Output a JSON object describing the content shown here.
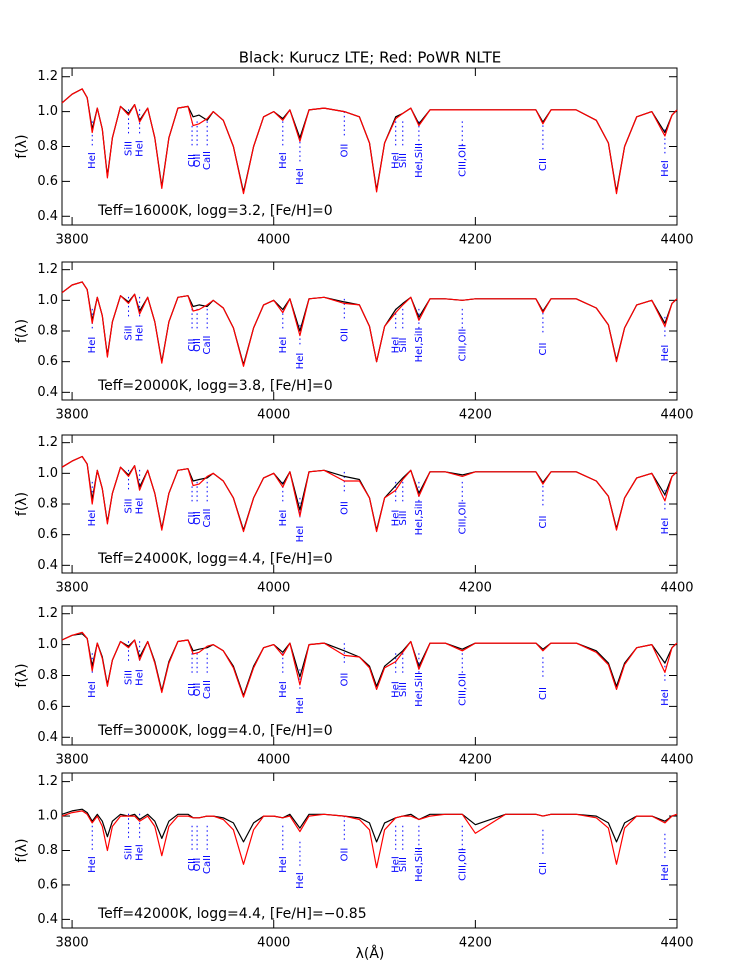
{
  "title": "Black: Kurucz LTE; Red: PoWR NLTE",
  "xlabel": "λ(Å)",
  "line_ids": [
    {
      "label": "HeI",
      "wavelength": 3820
    },
    {
      "label": "SiII",
      "wavelength": 3856
    },
    {
      "label": "HeI",
      "wavelength": 3867
    },
    {
      "label": "CII",
      "wavelength": 3919
    },
    {
      "label": "OII",
      "wavelength": 3924
    },
    {
      "label": "CaII",
      "wavelength": 3934
    },
    {
      "label": "HeI",
      "wavelength": 4009
    },
    {
      "label": "HeI",
      "wavelength": 4026
    },
    {
      "label": "OII",
      "wavelength": 4070
    },
    {
      "label": "HeI",
      "wavelength": 4121
    },
    {
      "label": "SiII",
      "wavelength": 4128
    },
    {
      "label": "HeI,SiII",
      "wavelength": 4144
    },
    {
      "label": "CIII,OII",
      "wavelength": 4187
    },
    {
      "label": "CII",
      "wavelength": 4267
    },
    {
      "label": "HeI",
      "wavelength": 4388
    }
  ],
  "chart_data": [
    {
      "type": "line",
      "ylabel": "f(λ)",
      "annotation": "Teff=16000K, logg=3.2, [Fe/H]=0",
      "x": [
        3790,
        3800,
        3810,
        3815,
        3820,
        3825,
        3830,
        3835,
        3840,
        3848,
        3856,
        3862,
        3867,
        3875,
        3882,
        3889,
        3896,
        3905,
        3915,
        3920,
        3926,
        3934,
        3940,
        3950,
        3960,
        3970,
        3980,
        3990,
        4000,
        4009,
        4016,
        4026,
        4035,
        4050,
        4070,
        4085,
        4095,
        4102,
        4110,
        4121,
        4128,
        4136,
        4144,
        4155,
        4170,
        4187,
        4200,
        4230,
        4260,
        4267,
        4275,
        4300,
        4320,
        4332,
        4340,
        4348,
        4360,
        4375,
        4388,
        4395,
        4400
      ],
      "series": [
        {
          "color": "#000000",
          "values": [
            1.05,
            1.1,
            1.13,
            1.08,
            0.9,
            1.02,
            0.9,
            0.63,
            0.85,
            1.03,
            0.99,
            1.04,
            0.95,
            1.02,
            0.85,
            0.57,
            0.85,
            1.02,
            1.03,
            0.97,
            0.98,
            0.95,
            1.0,
            0.95,
            0.8,
            0.54,
            0.8,
            0.97,
            1.0,
            0.96,
            1.01,
            0.85,
            1.01,
            1.02,
            1.0,
            0.97,
            0.82,
            0.55,
            0.82,
            0.97,
            0.99,
            1.02,
            0.93,
            1.01,
            1.01,
            1.01,
            1.01,
            1.01,
            1.01,
            0.94,
            1.01,
            1.01,
            0.95,
            0.82,
            0.54,
            0.8,
            0.97,
            1.0,
            0.88,
            0.98,
            1.01
          ]
        },
        {
          "color": "#ff0000",
          "values": [
            1.05,
            1.1,
            1.13,
            1.08,
            0.88,
            1.02,
            0.9,
            0.62,
            0.85,
            1.03,
            0.98,
            1.04,
            0.94,
            1.02,
            0.85,
            0.56,
            0.85,
            1.02,
            1.03,
            0.92,
            0.93,
            0.96,
            1.0,
            0.95,
            0.8,
            0.53,
            0.8,
            0.97,
            1.0,
            0.95,
            1.01,
            0.83,
            1.01,
            1.02,
            1.0,
            0.97,
            0.82,
            0.54,
            0.82,
            0.96,
            0.99,
            1.02,
            0.92,
            1.01,
            1.01,
            1.01,
            1.01,
            1.01,
            1.01,
            0.93,
            1.01,
            1.01,
            0.95,
            0.82,
            0.53,
            0.8,
            0.97,
            1.0,
            0.86,
            0.98,
            1.01
          ]
        }
      ],
      "xlim": [
        3790,
        4400
      ],
      "xticks": [
        3800,
        4000,
        4200,
        4400
      ],
      "ylim": [
        0.35,
        1.25
      ],
      "yticks": [
        0.4,
        0.6,
        0.8,
        {
          "value": 1,
          "label": "1.0"
        },
        1.2
      ]
    },
    {
      "type": "line",
      "ylabel": "f(λ)",
      "annotation": "Teff=20000K, logg=3.8, [Fe/H]=0",
      "x": [
        3790,
        3800,
        3810,
        3815,
        3820,
        3825,
        3830,
        3835,
        3840,
        3848,
        3856,
        3862,
        3867,
        3875,
        3882,
        3889,
        3896,
        3905,
        3915,
        3920,
        3926,
        3934,
        3940,
        3950,
        3960,
        3970,
        3980,
        3990,
        4000,
        4009,
        4016,
        4026,
        4035,
        4050,
        4070,
        4085,
        4095,
        4102,
        4110,
        4121,
        4128,
        4136,
        4144,
        4155,
        4170,
        4187,
        4200,
        4230,
        4260,
        4267,
        4275,
        4300,
        4320,
        4332,
        4340,
        4348,
        4360,
        4375,
        4388,
        4395,
        4400
      ],
      "series": [
        {
          "color": "#000000",
          "values": [
            1.05,
            1.1,
            1.12,
            1.07,
            0.87,
            1.02,
            0.9,
            0.64,
            0.86,
            1.03,
            0.99,
            1.04,
            0.93,
            1.02,
            0.86,
            0.6,
            0.86,
            1.02,
            1.03,
            0.96,
            0.97,
            0.96,
            1.0,
            0.95,
            0.82,
            0.58,
            0.82,
            0.97,
            1.0,
            0.94,
            1.01,
            0.8,
            1.01,
            1.02,
            0.99,
            0.97,
            0.83,
            0.6,
            0.83,
            0.94,
            0.98,
            1.02,
            0.89,
            1.01,
            1.01,
            1.0,
            1.01,
            1.01,
            1.01,
            0.93,
            1.01,
            1.01,
            0.95,
            0.84,
            0.61,
            0.82,
            0.97,
            1.0,
            0.85,
            0.98,
            1.01
          ]
        },
        {
          "color": "#ff0000",
          "values": [
            1.05,
            1.1,
            1.12,
            1.07,
            0.85,
            1.02,
            0.9,
            0.63,
            0.86,
            1.03,
            0.98,
            1.04,
            0.91,
            1.02,
            0.86,
            0.59,
            0.86,
            1.02,
            1.03,
            0.93,
            0.94,
            0.97,
            1.0,
            0.95,
            0.82,
            0.57,
            0.82,
            0.97,
            1.0,
            0.92,
            1.01,
            0.77,
            1.01,
            1.02,
            0.98,
            0.97,
            0.83,
            0.6,
            0.83,
            0.92,
            0.97,
            1.02,
            0.87,
            1.01,
            1.01,
            1.0,
            1.01,
            1.01,
            1.01,
            0.92,
            1.01,
            1.01,
            0.95,
            0.84,
            0.6,
            0.82,
            0.97,
            1.0,
            0.83,
            0.98,
            1.01
          ]
        }
      ],
      "xlim": [
        3790,
        4400
      ],
      "xticks": [
        3800,
        4000,
        4200,
        4400
      ],
      "ylim": [
        0.35,
        1.25
      ],
      "yticks": [
        0.4,
        0.6,
        0.8,
        {
          "value": 1,
          "label": "1.0"
        },
        1.2
      ]
    },
    {
      "type": "line",
      "ylabel": "f(λ)",
      "annotation": "Teff=24000K, logg=4.4, [Fe/H]=0",
      "x": [
        3790,
        3800,
        3810,
        3815,
        3820,
        3825,
        3830,
        3835,
        3840,
        3848,
        3856,
        3862,
        3867,
        3875,
        3882,
        3889,
        3896,
        3905,
        3915,
        3920,
        3926,
        3934,
        3940,
        3950,
        3960,
        3970,
        3980,
        3990,
        4000,
        4009,
        4016,
        4026,
        4035,
        4050,
        4070,
        4085,
        4095,
        4102,
        4110,
        4121,
        4128,
        4136,
        4144,
        4155,
        4170,
        4187,
        4200,
        4230,
        4260,
        4267,
        4275,
        4300,
        4320,
        4332,
        4340,
        4348,
        4360,
        4375,
        4388,
        4395,
        4400
      ],
      "series": [
        {
          "color": "#000000",
          "values": [
            1.04,
            1.08,
            1.11,
            1.06,
            0.83,
            1.02,
            0.9,
            0.68,
            0.87,
            1.04,
            0.99,
            1.05,
            0.91,
            1.02,
            0.87,
            0.64,
            0.87,
            1.02,
            1.03,
            0.95,
            0.96,
            0.97,
            1.0,
            0.95,
            0.84,
            0.63,
            0.84,
            0.97,
            1.0,
            0.93,
            1.01,
            0.76,
            1.01,
            1.02,
            0.98,
            0.96,
            0.84,
            0.63,
            0.84,
            0.92,
            0.97,
            1.02,
            0.87,
            1.01,
            1.01,
            0.99,
            1.01,
            1.01,
            1.01,
            0.94,
            1.01,
            1.01,
            0.95,
            0.85,
            0.64,
            0.84,
            0.97,
            1.0,
            0.86,
            0.98,
            1.01
          ]
        },
        {
          "color": "#ff0000",
          "values": [
            1.04,
            1.08,
            1.11,
            1.06,
            0.8,
            1.02,
            0.9,
            0.67,
            0.87,
            1.04,
            0.98,
            1.05,
            0.89,
            1.02,
            0.87,
            0.63,
            0.87,
            1.02,
            1.03,
            0.92,
            0.93,
            0.98,
            1.0,
            0.95,
            0.84,
            0.62,
            0.84,
            0.97,
            1.0,
            0.91,
            1.01,
            0.72,
            1.01,
            1.02,
            0.95,
            0.95,
            0.84,
            0.62,
            0.84,
            0.89,
            0.96,
            1.02,
            0.85,
            1.01,
            1.01,
            0.98,
            1.01,
            1.01,
            1.01,
            0.93,
            1.01,
            1.01,
            0.95,
            0.85,
            0.63,
            0.84,
            0.97,
            1.0,
            0.82,
            0.98,
            1.01
          ]
        }
      ],
      "xlim": [
        3790,
        4400
      ],
      "xticks": [
        3800,
        4000,
        4200,
        4400
      ],
      "ylim": [
        0.35,
        1.25
      ],
      "yticks": [
        0.4,
        0.6,
        0.8,
        {
          "value": 1,
          "label": "1.0"
        },
        1.2
      ]
    },
    {
      "type": "line",
      "ylabel": "f(λ)",
      "annotation": "Teff=30000K, logg=4.0, [Fe/H]=0",
      "x": [
        3790,
        3800,
        3810,
        3815,
        3820,
        3825,
        3830,
        3835,
        3840,
        3848,
        3856,
        3862,
        3867,
        3875,
        3882,
        3889,
        3896,
        3905,
        3915,
        3920,
        3926,
        3934,
        3940,
        3950,
        3960,
        3970,
        3980,
        3990,
        4000,
        4009,
        4016,
        4026,
        4035,
        4050,
        4070,
        4085,
        4095,
        4102,
        4110,
        4121,
        4128,
        4136,
        4144,
        4155,
        4170,
        4187,
        4200,
        4230,
        4260,
        4267,
        4275,
        4300,
        4320,
        4332,
        4340,
        4348,
        4360,
        4375,
        4388,
        4395,
        4400
      ],
      "series": [
        {
          "color": "#000000",
          "values": [
            1.03,
            1.06,
            1.07,
            1.04,
            0.86,
            1.01,
            0.92,
            0.74,
            0.9,
            1.02,
            0.99,
            1.03,
            0.92,
            1.02,
            0.89,
            0.7,
            0.89,
            1.02,
            1.03,
            0.96,
            0.97,
            0.98,
            1.0,
            0.96,
            0.86,
            0.67,
            0.86,
            0.98,
            1.0,
            0.95,
            1.01,
            0.79,
            1.0,
            1.01,
            0.96,
            0.92,
            0.86,
            0.73,
            0.86,
            0.92,
            0.96,
            1.02,
            0.86,
            1.01,
            1.01,
            0.97,
            1.01,
            1.01,
            1.01,
            0.97,
            1.01,
            1.01,
            0.96,
            0.88,
            0.73,
            0.88,
            0.98,
            1.0,
            0.88,
            0.98,
            1.01
          ]
        },
        {
          "color": "#ff0000",
          "values": [
            1.03,
            1.06,
            1.08,
            1.04,
            0.83,
            1.01,
            0.91,
            0.73,
            0.9,
            1.02,
            0.98,
            1.03,
            0.9,
            1.02,
            0.88,
            0.69,
            0.88,
            1.02,
            1.03,
            0.94,
            0.95,
            0.99,
            1.0,
            0.96,
            0.85,
            0.66,
            0.85,
            0.98,
            1.0,
            0.93,
            1.01,
            0.74,
            1.0,
            1.01,
            0.93,
            0.92,
            0.85,
            0.71,
            0.85,
            0.89,
            0.95,
            1.02,
            0.84,
            1.01,
            1.01,
            0.96,
            1.01,
            1.01,
            1.01,
            0.96,
            1.01,
            1.01,
            0.95,
            0.87,
            0.71,
            0.87,
            0.98,
            1.0,
            0.82,
            0.98,
            1.01
          ]
        }
      ],
      "xlim": [
        3790,
        4400
      ],
      "xticks": [
        3800,
        4000,
        4200,
        4400
      ],
      "ylim": [
        0.35,
        1.25
      ],
      "yticks": [
        0.4,
        0.6,
        0.8,
        {
          "value": 1,
          "label": "1.0"
        },
        1.2
      ]
    },
    {
      "type": "line",
      "ylabel": "f(λ)",
      "annotation": "Teff=42000K, logg=4.4, [Fe/H]=−0.85",
      "x": [
        3790,
        3800,
        3810,
        3815,
        3820,
        3825,
        3830,
        3835,
        3840,
        3848,
        3856,
        3862,
        3867,
        3875,
        3882,
        3889,
        3896,
        3905,
        3915,
        3920,
        3926,
        3934,
        3940,
        3950,
        3960,
        3970,
        3980,
        3990,
        4000,
        4009,
        4016,
        4026,
        4035,
        4050,
        4070,
        4085,
        4095,
        4102,
        4110,
        4121,
        4128,
        4136,
        4144,
        4155,
        4170,
        4187,
        4200,
        4230,
        4260,
        4267,
        4275,
        4300,
        4320,
        4332,
        4340,
        4348,
        4360,
        4375,
        4388,
        4395,
        4400
      ],
      "series": [
        {
          "color": "#000000",
          "values": [
            1.01,
            1.03,
            1.04,
            1.02,
            0.97,
            1.01,
            0.97,
            0.88,
            0.97,
            1.01,
            1.0,
            1.01,
            0.98,
            1.01,
            0.97,
            0.87,
            0.97,
            1.01,
            1.01,
            0.99,
            0.99,
            1.0,
            1.0,
            0.99,
            0.96,
            0.85,
            0.96,
            1.0,
            1.0,
            0.99,
            1.01,
            0.93,
            1.01,
            1.01,
            1.0,
            0.99,
            0.96,
            0.85,
            0.96,
            0.99,
            1.0,
            1.01,
            0.98,
            1.01,
            1.01,
            1.01,
            0.95,
            1.01,
            1.01,
            1.0,
            1.01,
            1.01,
            1.0,
            0.96,
            0.85,
            0.96,
            1.0,
            1.0,
            0.97,
            1.0,
            1.01
          ]
        },
        {
          "color": "#ff0000",
          "values": [
            1.0,
            1.02,
            1.03,
            1.01,
            0.96,
            1.0,
            0.94,
            0.8,
            0.94,
            1.0,
            1.0,
            1.0,
            0.97,
            1.0,
            0.94,
            0.77,
            0.94,
            1.0,
            1.0,
            0.99,
            0.99,
            1.0,
            1.0,
            0.98,
            0.92,
            0.72,
            0.92,
            1.0,
            1.0,
            0.99,
            1.0,
            0.91,
            1.0,
            1.01,
            1.0,
            0.98,
            0.92,
            0.7,
            0.92,
            0.99,
            1.0,
            1.0,
            0.98,
            1.0,
            1.01,
            1.01,
            0.9,
            1.01,
            1.01,
            1.0,
            1.01,
            1.01,
            0.99,
            0.93,
            0.72,
            0.93,
            1.0,
            1.0,
            0.96,
            1.0,
            1.01
          ]
        }
      ],
      "xlim": [
        3790,
        4400
      ],
      "xticks": [
        3800,
        4000,
        4200,
        4400
      ],
      "ylim": [
        0.35,
        1.25
      ],
      "yticks": [
        0.4,
        0.6,
        0.8,
        {
          "value": 1,
          "label": "1.0"
        },
        1.2
      ]
    }
  ]
}
